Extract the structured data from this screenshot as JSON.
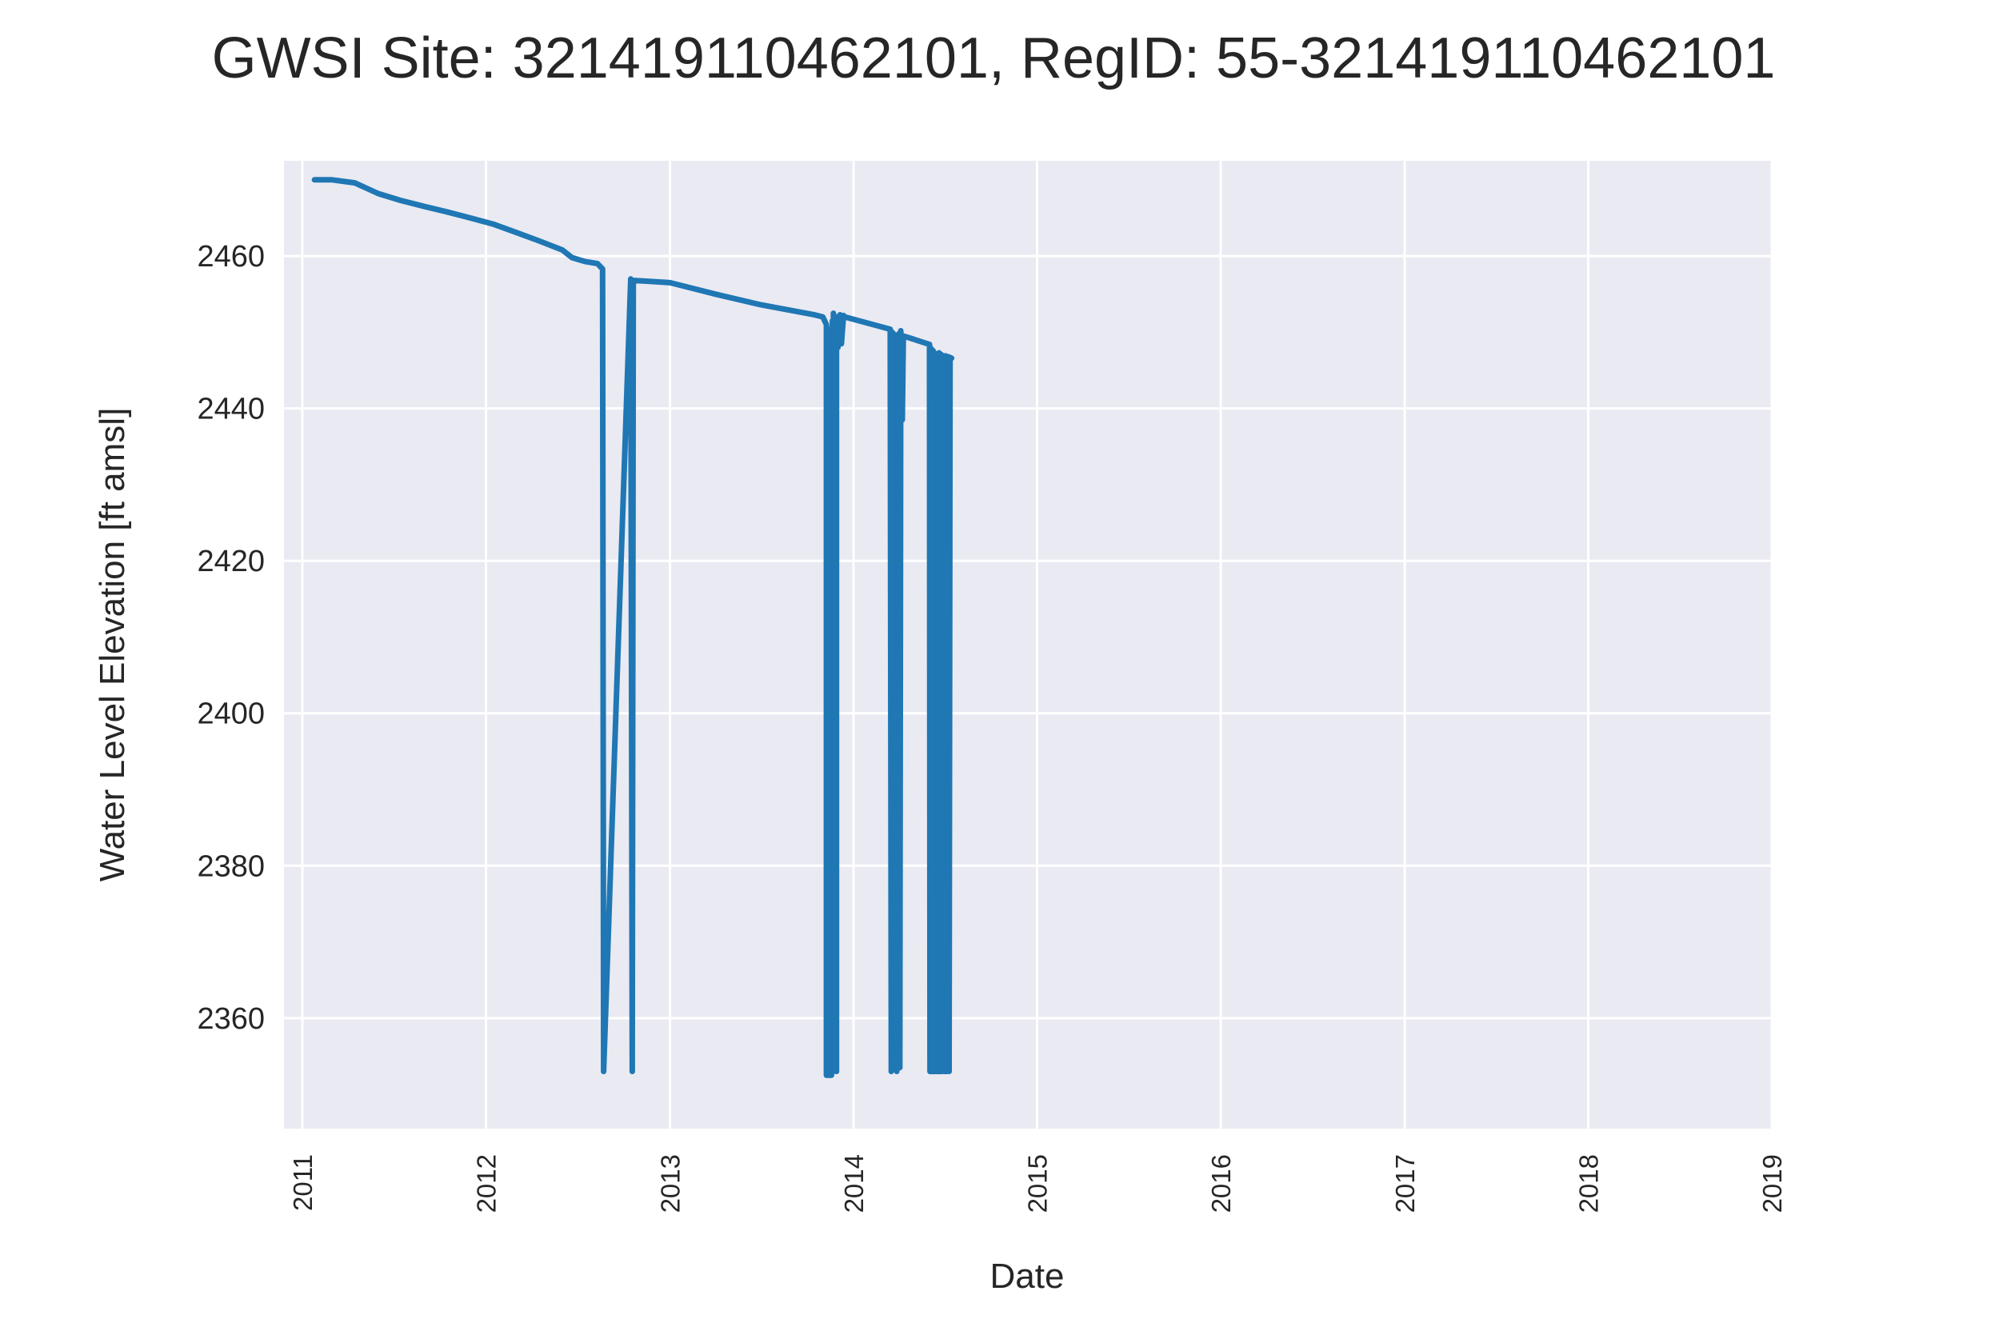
{
  "chart_data": {
    "type": "line",
    "title": "GWSI Site: 321419110462101, RegID: 55-321419110462101",
    "xlabel": "Date",
    "ylabel": "Water Level Elevation [ft amsl]",
    "x_ticks": [
      "2011",
      "2012",
      "2013",
      "2014",
      "2015",
      "2016",
      "2017",
      "2018",
      "2019"
    ],
    "y_ticks": [
      2360,
      2380,
      2400,
      2420,
      2440,
      2460
    ],
    "xlim": [
      "2011-01-01",
      "2019-01-01"
    ],
    "ylim": [
      2345.5,
      2472.5
    ],
    "grid": true,
    "legend": "none",
    "colors": {
      "line": "#1f77b4",
      "plot_background": "#eaeaf2",
      "grid": "#ffffff"
    },
    "series": [
      {
        "x": [
          "2011-01-25",
          "2011-03-01",
          "2011-04-15",
          "2011-06-01",
          "2011-07-15",
          "2011-09-01",
          "2011-10-15",
          "2011-12-01",
          "2012-01-15",
          "2012-03-01",
          "2012-04-15",
          "2012-06-01",
          "2012-06-20",
          "2012-07-15",
          "2012-08-10",
          "2012-08-20",
          "2012-08-22",
          "2012-10-15",
          "2012-10-18",
          "2012-10-20",
          "2012-11-15",
          "2013-01-01",
          "2013-04-01",
          "2013-07-01",
          "2013-10-15",
          "2013-11-01",
          "2013-11-08",
          "2013-11-08",
          "2013-11-10",
          "2013-11-12",
          "2013-11-12",
          "2013-11-15",
          "2013-11-18",
          "2013-11-18",
          "2013-11-20",
          "2013-11-22",
          "2013-11-22",
          "2013-11-25",
          "2013-11-28",
          "2013-11-28",
          "2013-12-01",
          "2013-12-05",
          "2013-12-08",
          "2013-12-12",
          "2013-12-15",
          "2014-03-15",
          "2014-03-17",
          "2014-03-19",
          "2014-03-25",
          "2014-03-28",
          "2014-04-01",
          "2014-04-03",
          "2014-04-05",
          "2014-04-08",
          "2014-04-10",
          "2014-04-20",
          "2014-06-01",
          "2014-06-02",
          "2014-06-04",
          "2014-06-06",
          "2014-06-08",
          "2014-06-10",
          "2014-06-12",
          "2014-06-14",
          "2014-06-16",
          "2014-06-18",
          "2014-06-20",
          "2014-06-22",
          "2014-06-24",
          "2014-06-26",
          "2014-06-28",
          "2014-07-01",
          "2014-07-03",
          "2014-07-05",
          "2014-07-08",
          "2014-07-10",
          "2014-07-12",
          "2014-07-15"
        ],
        "y": [
          2470.0,
          2470.0,
          2469.6,
          2468.2,
          2467.3,
          2466.5,
          2465.8,
          2465.0,
          2464.2,
          2463.1,
          2462.0,
          2460.8,
          2459.8,
          2459.3,
          2459.0,
          2458.3,
          2353,
          2457.0,
          2353,
          2456.8,
          2456.7,
          2456.5,
          2455.0,
          2453.6,
          2452.3,
          2452.0,
          2451.0,
          2352.5,
          2450.5,
          2352.5,
          2450.0,
          2352.5,
          2449.0,
          2352.5,
          2451.5,
          2353.0,
          2452.5,
          2448.0,
          2353.0,
          2452.0,
          2448.0,
          2452.3,
          2448.5,
          2452.2,
          2452.0,
          2450.4,
          2353.0,
          2450.0,
          2449.5,
          2353.0,
          2449.8,
          2353.5,
          2450.2,
          2438.5,
          2449.5,
          2449.3,
          2448.4,
          2353.0,
          2447.9,
          2353.0,
          2447.6,
          2353.0,
          2447.2,
          2353.0,
          2447.2,
          2353.0,
          2447.3,
          2353.0,
          2447.1,
          2353.0,
          2446.9,
          2353.0,
          2446.9,
          2353.0,
          2446.8,
          2353.0,
          2446.7,
          2446.6
        ]
      }
    ]
  }
}
